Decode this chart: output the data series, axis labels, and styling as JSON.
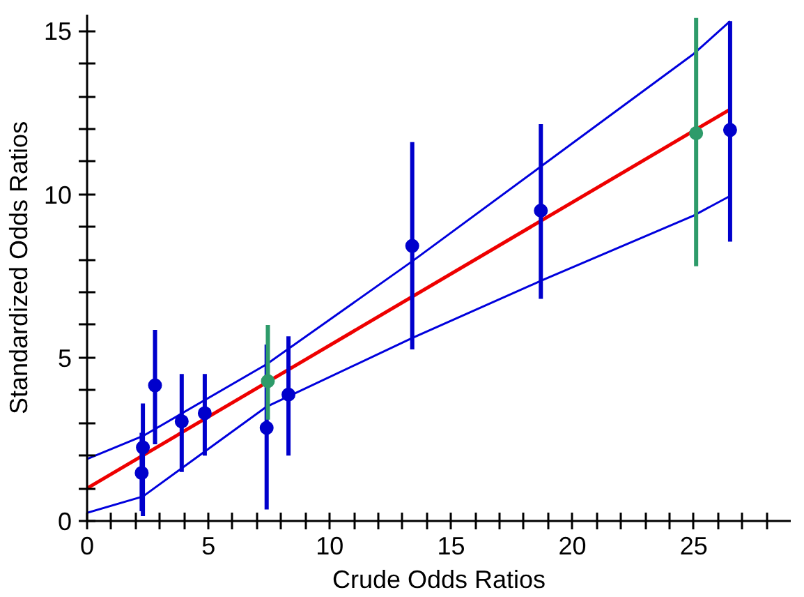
{
  "chart_data": {
    "type": "scatter",
    "xlabel": "Crude Odds Ratios",
    "ylabel": "Standardized Odds Ratios",
    "xlim": [
      0,
      29
    ],
    "ylim": [
      0,
      15.5
    ],
    "xticks": [
      0,
      {
        "value": 1,
        "label": null
      },
      {
        "value": 2,
        "label": null
      },
      {
        "value": 3,
        "label": null
      },
      {
        "value": 4,
        "label": null
      },
      5,
      {
        "value": 6,
        "label": null
      },
      {
        "value": 7,
        "label": null
      },
      {
        "value": 8,
        "label": null
      },
      {
        "value": 9,
        "label": null
      },
      10,
      {
        "value": 11,
        "label": null
      },
      {
        "value": 12,
        "label": null
      },
      {
        "value": 13,
        "label": null
      },
      {
        "value": 14,
        "label": null
      },
      15,
      {
        "value": 16,
        "label": null
      },
      {
        "value": 17,
        "label": null
      },
      {
        "value": 18,
        "label": null
      },
      {
        "value": 19,
        "label": null
      },
      20,
      {
        "value": 21,
        "label": null
      },
      {
        "value": 22,
        "label": null
      },
      {
        "value": 23,
        "label": null
      },
      {
        "value": 24,
        "label": null
      },
      25,
      {
        "value": 26,
        "label": null
      },
      {
        "value": 27,
        "label": null
      },
      {
        "value": 28,
        "label": null
      }
    ],
    "yticks": [
      0,
      {
        "value": 1,
        "label": null
      },
      {
        "value": 2,
        "label": null
      },
      {
        "value": 3,
        "label": null
      },
      {
        "value": 4,
        "label": null
      },
      5,
      {
        "value": 6,
        "label": null
      },
      {
        "value": 7,
        "label": null
      },
      {
        "value": 8,
        "label": null
      },
      {
        "value": 9,
        "label": null
      },
      10,
      {
        "value": 11,
        "label": null
      },
      {
        "value": 12,
        "label": null
      },
      {
        "value": 13,
        "label": null
      },
      {
        "value": 14,
        "label": null
      },
      15
    ],
    "grid": false,
    "series": [
      {
        "type": "line",
        "color": "#0000dd",
        "x": [
          0,
          2.3,
          7.4,
          13.4,
          18.7,
          25,
          26.5
        ],
        "values": [
          1.9,
          2.6,
          4.8,
          7.95,
          10.85,
          14.3,
          15.3
        ]
      },
      {
        "type": "line",
        "color": "#0000dd",
        "x": [
          0,
          2.3,
          7.4,
          13.4,
          18.7,
          25,
          26.5
        ],
        "values": [
          0.25,
          0.75,
          3.5,
          5.6,
          7.35,
          9.35,
          9.95
        ]
      },
      {
        "type": "line",
        "color": "#ee0000",
        "x": [
          0,
          26.5
        ],
        "values": [
          1.0,
          12.6
        ]
      },
      {
        "marker": "circle",
        "color": "#0000cc",
        "x": [
          2.3,
          2.25,
          2.8,
          3.9,
          4.85,
          7.4,
          8.3,
          13.4,
          18.7,
          26.5
        ],
        "values": [
          2.25,
          1.47,
          4.15,
          3.05,
          3.3,
          2.85,
          3.87,
          8.42,
          9.5,
          11.97
        ],
        "errors": [
          [
            0.15,
            3.6
          ],
          [
            0.3,
            2.7
          ],
          [
            2.35,
            5.85
          ],
          [
            1.5,
            4.5
          ],
          [
            2.0,
            4.5
          ],
          [
            0.35,
            5.4
          ],
          [
            2.0,
            5.65
          ],
          [
            5.25,
            11.6
          ],
          [
            6.8,
            12.15
          ],
          [
            8.55,
            15.3
          ]
        ]
      },
      {
        "marker": "circle",
        "color": "#2e9b6a",
        "x": [
          7.45,
          25.1
        ],
        "values": [
          4.28,
          11.87
        ],
        "errors": [
          [
            3.1,
            6.0
          ],
          [
            7.8,
            15.4
          ]
        ]
      }
    ]
  }
}
